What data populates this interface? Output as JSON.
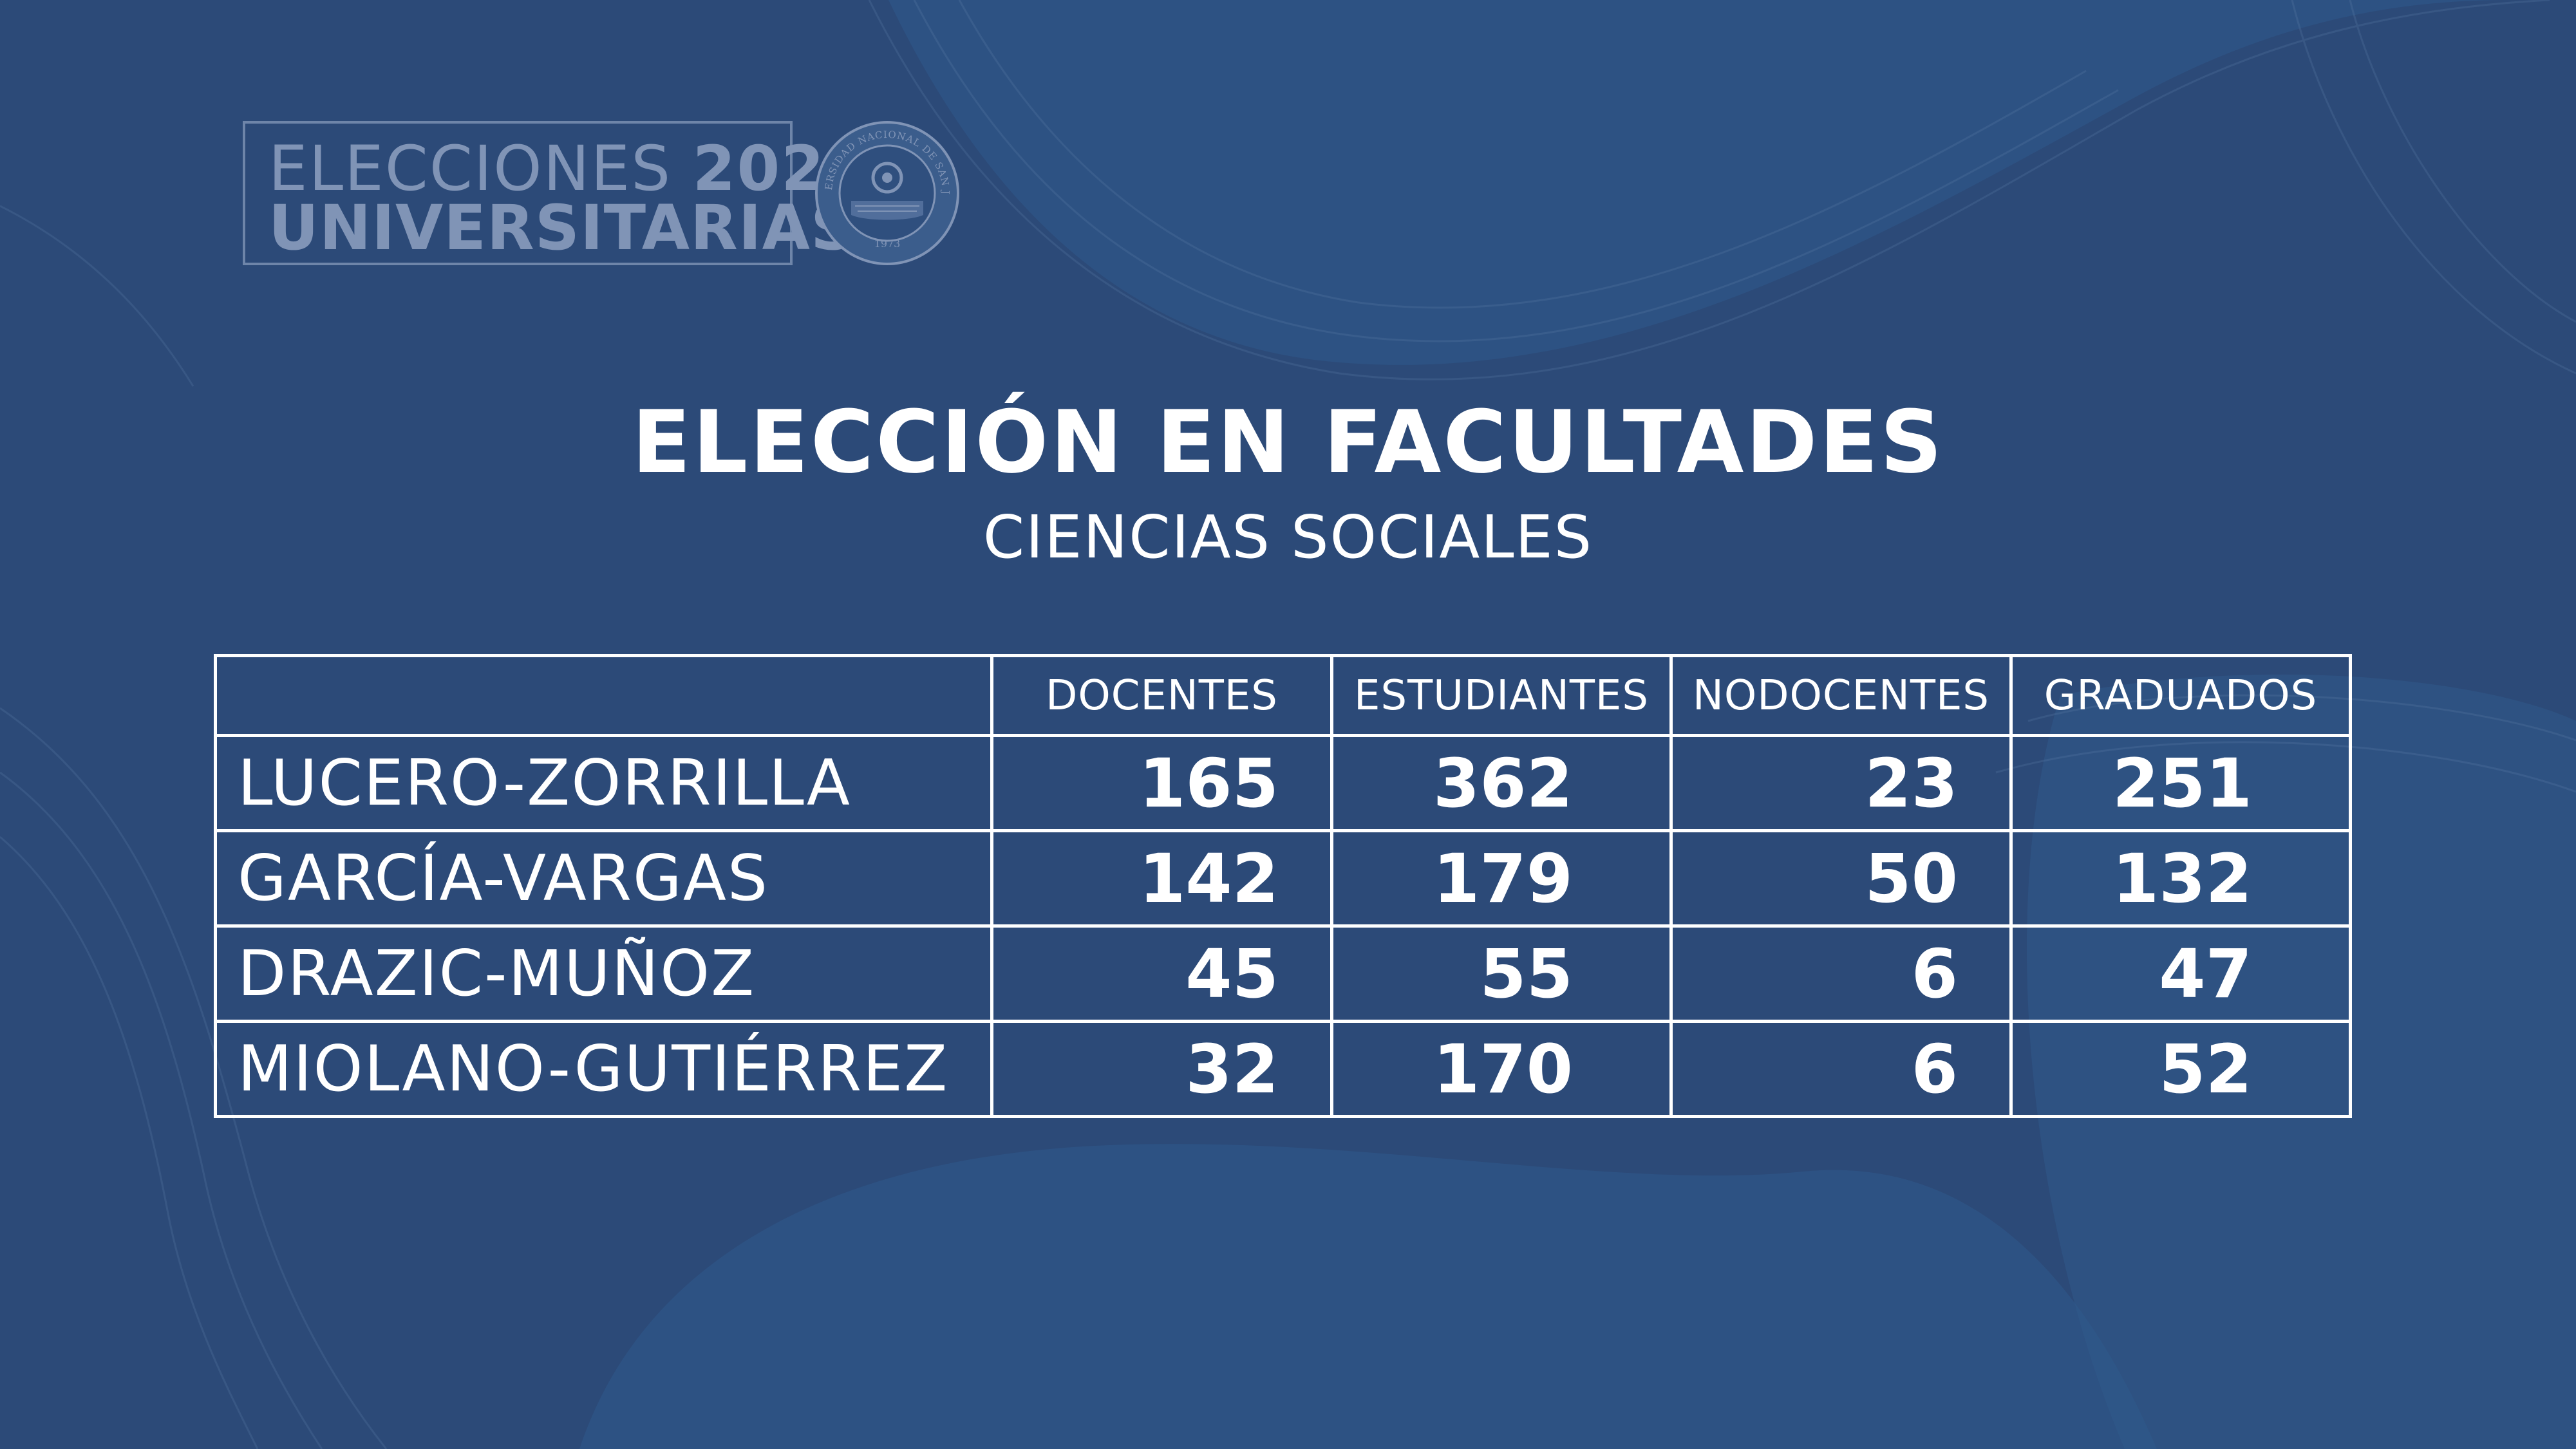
{
  "header": {
    "logo_line1_word": "ELECCIONES",
    "logo_line1_year": "2021",
    "logo_line2": "UNIVERSITARIAS",
    "seal_text": "UNIVERSIDAD NACIONAL DE SAN JUAN",
    "seal_year": "1973"
  },
  "title": "ELECCIÓN EN FACULTADES",
  "subtitle": "CIENCIAS SOCIALES",
  "table": {
    "columns": [
      "",
      "DOCENTES",
      "ESTUDIANTES",
      "NODOCENTES",
      "GRADUADOS"
    ],
    "rows": [
      {
        "name": "LUCERO-ZORRILLA",
        "values": [
          "165",
          "362",
          "23",
          "251"
        ]
      },
      {
        "name": "GARCÍA-VARGAS",
        "values": [
          "142",
          "179",
          "50",
          "132"
        ]
      },
      {
        "name": "DRAZIC-MUÑOZ",
        "values": [
          "45",
          "55",
          "6",
          "47"
        ]
      },
      {
        "name": "MIOLANO-GUTIÉRREZ",
        "values": [
          "32",
          "170",
          "6",
          "52"
        ]
      }
    ]
  },
  "colors": {
    "background": "#2c4a78",
    "background_wave": "#2f5a8c",
    "text": "#ffffff",
    "logo_text": "#8094b6"
  }
}
